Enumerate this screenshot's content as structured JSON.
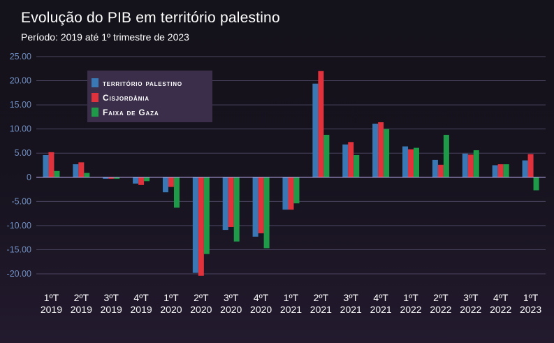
{
  "header": {
    "title": "Evolução do PIB em território palestino",
    "subtitle": "Período: 2019 até 1º trimestre de 2023"
  },
  "colors": {
    "territorio": "#3a78b5",
    "cisjordania": "#e0323c",
    "gaza": "#1e9a48",
    "grid": "#4a4560",
    "axis_labels": "#6f8fc4",
    "legend_bg": "#3a2e4a"
  },
  "chart_data": {
    "type": "bar",
    "title": "Evolução do PIB em território palestino",
    "subtitle": "Período: 2019 até 1º trimestre de 2023",
    "xlabel": "",
    "ylabel": "",
    "ylim": [
      -20,
      25
    ],
    "yticks": [
      "25.00",
      "20.00",
      "15.00",
      "10.00",
      "5.00",
      "0",
      "-5.00",
      "-10.00",
      "-15.00",
      "-20.00"
    ],
    "ytick_values": [
      25,
      20,
      15,
      10,
      5,
      0,
      -5,
      -10,
      -15,
      -20
    ],
    "categories": [
      [
        "1ºT",
        "2019"
      ],
      [
        "2ºT",
        "2019"
      ],
      [
        "3ºT",
        "2019"
      ],
      [
        "4ºT",
        "2019"
      ],
      [
        "1ºT",
        "2020"
      ],
      [
        "2ºT",
        "2020"
      ],
      [
        "3ºT",
        "2020"
      ],
      [
        "4ºT",
        "2020"
      ],
      [
        "1ºT",
        "2021"
      ],
      [
        "2ºT",
        "2021"
      ],
      [
        "3ºT",
        "2021"
      ],
      [
        "4ºT",
        "2021"
      ],
      [
        "1ºT",
        "2022"
      ],
      [
        "2ºT",
        "2022"
      ],
      [
        "3ºT",
        "2022"
      ],
      [
        "4ºT",
        "2022"
      ],
      [
        "1ºT",
        "2023"
      ]
    ],
    "legend_position": "top-left",
    "grid": true,
    "series": [
      {
        "name": "território palestino",
        "color": "#3a78b5",
        "values": [
          4.6,
          2.7,
          -0.3,
          -1.3,
          -3.1,
          -19.8,
          -10.9,
          -12.3,
          -6.7,
          19.4,
          6.8,
          11.1,
          6.4,
          3.6,
          4.9,
          2.5,
          3.5
        ]
      },
      {
        "name": "Cisjordânia",
        "color": "#e0323c",
        "values": [
          5.2,
          3.1,
          -0.3,
          -1.6,
          -2.0,
          -20.4,
          -10.3,
          -11.6,
          -6.7,
          22.0,
          7.3,
          11.4,
          5.8,
          2.6,
          4.7,
          2.7,
          4.8
        ]
      },
      {
        "name": "Faixa de Gaza",
        "color": "#1e9a48",
        "values": [
          1.3,
          0.9,
          -0.3,
          -0.8,
          -6.3,
          -15.9,
          -13.3,
          -14.7,
          -5.4,
          8.8,
          4.6,
          10.0,
          6.1,
          8.8,
          5.6,
          2.7,
          -2.7
        ]
      }
    ]
  }
}
